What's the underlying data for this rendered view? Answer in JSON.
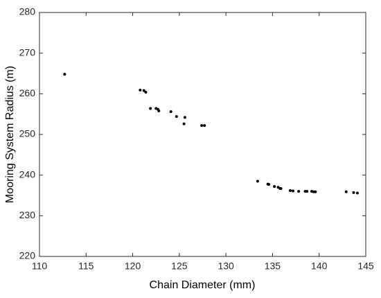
{
  "chart_data": {
    "type": "scatter",
    "x_label": "Chain Diameter (mm)",
    "y_label": "Mooring System Radius (m)",
    "color": "#000000",
    "x": [
      112.7,
      120.8,
      121.2,
      121.4,
      121.9,
      122.5,
      122.7,
      122.8,
      124.1,
      124.7,
      125.5,
      125.6,
      127.4,
      127.7,
      133.4,
      134.5,
      134.6,
      135.2,
      135.6,
      135.8,
      135.9,
      136.9,
      137.2,
      137.8,
      138.5,
      138.7,
      139.2,
      139.4,
      139.6,
      142.9,
      143.7,
      144.1
    ],
    "y": [
      264.8,
      260.9,
      260.8,
      260.4,
      256.4,
      256.4,
      256.2,
      255.8,
      255.6,
      254.4,
      252.6,
      254.2,
      252.2,
      252.2,
      238.5,
      237.8,
      237.7,
      237.2,
      237.0,
      236.7,
      236.7,
      236.2,
      236.1,
      236.0,
      236.0,
      236.0,
      236.0,
      235.9,
      235.9,
      235.9,
      235.7,
      235.6
    ],
    "xlim": [
      110,
      145
    ],
    "xticks": [
      110,
      115,
      120,
      125,
      130,
      135,
      140,
      145
    ],
    "ylim": [
      220,
      280
    ],
    "yticks": [
      220,
      230,
      240,
      250,
      260,
      270,
      280
    ],
    "grid": false
  }
}
